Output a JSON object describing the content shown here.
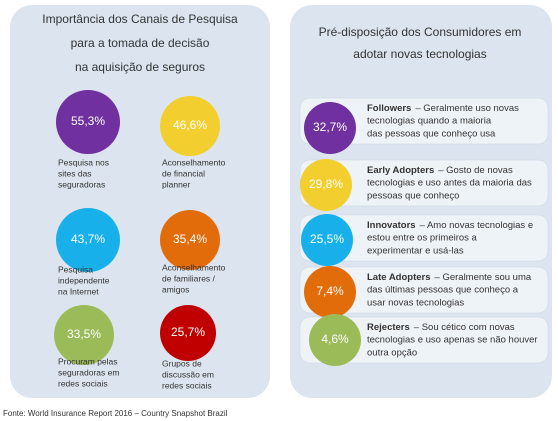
{
  "left": {
    "title": [
      "Importância dos Canais de Pesquisa",
      "para a tomada de decisão",
      "na aquisição de seguros"
    ],
    "items": [
      {
        "value": "55,3%",
        "label": [
          "Pesquisa nos",
          "sites das",
          "seguradoras"
        ]
      },
      {
        "value": "46,6%",
        "label": [
          "Aconselhamento",
          "de financial",
          "planner"
        ]
      },
      {
        "value": "43,7%",
        "label": [
          "Pesquisa",
          "independente",
          "na Internet"
        ]
      },
      {
        "value": "35,4%",
        "label": [
          "Aconselhamento",
          "de familiares /",
          "amigos"
        ]
      },
      {
        "value": "33,5%",
        "label": [
          "Procuram pelas",
          "seguradoras em",
          "redes sociais"
        ]
      },
      {
        "value": "25,7%",
        "label": [
          "Grupos de",
          "discussão em",
          "redes sociais"
        ]
      }
    ]
  },
  "right": {
    "title": [
      "Pré-disposição dos Consumidores em",
      "adotar novas tecnologias"
    ],
    "items": [
      {
        "value": "32,7%",
        "name": "Followers",
        "description": [
          "– Geralmente uso novas",
          "tecnologias quando a  maioria",
          "das pessoas que conheço usa"
        ]
      },
      {
        "value": "29,8%",
        "name": "Early Adopters",
        "description": [
          "– Gosto de  novas",
          "tecnologias e uso antes da maioria das",
          "pessoas que conheço"
        ]
      },
      {
        "value": "25,5%",
        "name": "Innovators",
        "description": [
          "– Amo  novas tecnologias e",
          "estou entre os primeiros a",
          "experimentar e usá-las"
        ]
      },
      {
        "value": "7,4%",
        "name": "Late Adopters",
        "description": [
          "– Geralmente sou uma",
          "das últimas pessoas que conheço a",
          "usar novas tecnologias"
        ]
      },
      {
        "value": "4,6%",
        "name": "Rejecters",
        "description": [
          "– Sou cético com novas",
          "tecnologias e uso apenas se não houver",
          "outra opção"
        ]
      }
    ]
  },
  "footer": "Fonte: World Insurance Report 2016 – Country Snapshot Brazil"
}
